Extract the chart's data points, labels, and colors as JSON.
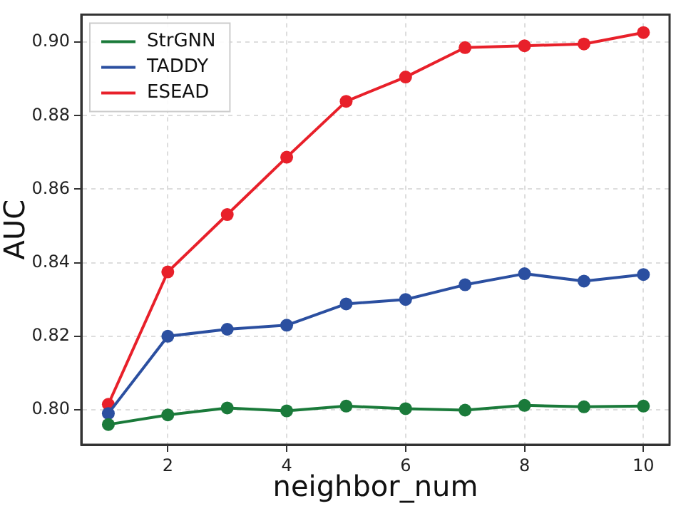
{
  "chart_data": {
    "type": "line",
    "xlabel": "neighbor_num",
    "ylabel": "AUC",
    "x": [
      1,
      2,
      3,
      4,
      5,
      6,
      7,
      8,
      9,
      10
    ],
    "series": [
      {
        "name": "StrGNN",
        "color": "#1a7a3a",
        "values": [
          0.796,
          0.7986,
          0.8005,
          0.7997,
          0.801,
          0.8003,
          0.7999,
          0.8012,
          0.8008,
          0.801
        ]
      },
      {
        "name": "TADDY",
        "color": "#2b4fa0",
        "values": [
          0.799,
          0.82,
          0.8219,
          0.823,
          0.8288,
          0.83,
          0.834,
          0.837,
          0.835,
          0.8368
        ]
      },
      {
        "name": "ESEAD",
        "color": "#e8202a",
        "values": [
          0.8015,
          0.8375,
          0.8531,
          0.8687,
          0.8839,
          0.8905,
          0.8985,
          0.899,
          0.8995,
          0.9026
        ]
      }
    ],
    "xlim": [
      0.545,
      10.44
    ],
    "xticks": [
      2,
      4,
      6,
      8,
      10
    ],
    "ylim": [
      0.7905,
      0.9075
    ],
    "yticks": [
      {
        "value": 0.8,
        "label": "0.80"
      },
      {
        "value": 0.82,
        "label": "0.82"
      },
      {
        "value": 0.84,
        "label": "0.84"
      },
      {
        "value": 0.86,
        "label": "0.86"
      },
      {
        "value": 0.88,
        "label": "0.88"
      },
      {
        "value": 0.9,
        "label": "0.90"
      }
    ],
    "grid": true,
    "legend": "top left",
    "marker": "circle",
    "line_style": "solid"
  }
}
